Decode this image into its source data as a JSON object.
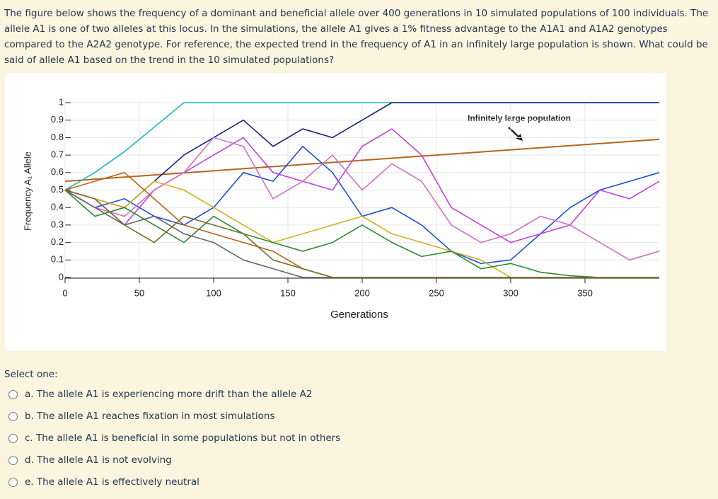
{
  "question": "The figure below shows the frequency of a dominant and beneficial allele over 400 generations in 10 simulated populations of 100 individuals. The allele A1 is one of two alleles at this locus. In the simulations, the allele A1 gives a 1% fitness advantage to the A1A1 and A1A2 genotypes compared to the A2A2 genotype. For reference, the expected trend in the frequency of A1 in an infinitely large population is shown. What could be said of allele A1 based on the trend in the 10 simulated populations?",
  "chart_data": {
    "type": "line",
    "x_label": "Generations",
    "y_label": "Frequency A₁ Allele",
    "annotation": "Infinitely large population",
    "x": [
      0,
      20,
      40,
      60,
      80,
      100,
      120,
      140,
      160,
      180,
      200,
      220,
      240,
      260,
      280,
      300,
      320,
      340,
      360,
      380,
      400
    ],
    "xlim": [
      0,
      400
    ],
    "xticks": [
      0,
      50,
      100,
      150,
      200,
      250,
      300,
      350
    ],
    "ylim": [
      0,
      1
    ],
    "yticks": [
      0,
      0.1,
      0.2,
      0.3,
      0.4,
      0.5,
      0.6,
      0.7,
      0.8,
      0.9,
      1
    ],
    "series": [
      {
        "color": "#1fb5c8",
        "values": [
          0.5,
          0.6,
          0.72,
          0.86,
          1,
          1,
          1,
          1,
          1,
          1,
          1,
          1,
          1,
          1,
          1,
          1,
          1,
          1,
          1,
          1,
          1
        ]
      },
      {
        "color": "#1a237e",
        "values": [
          0.5,
          0.45,
          0.4,
          0.55,
          0.7,
          0.8,
          0.9,
          0.75,
          0.85,
          0.8,
          0.9,
          1,
          1,
          1,
          1,
          1,
          1,
          1,
          1,
          1,
          1
        ]
      },
      {
        "color": "#1e4fd8",
        "values": [
          0.5,
          0.4,
          0.45,
          0.35,
          0.3,
          0.4,
          0.6,
          0.55,
          0.75,
          0.6,
          0.35,
          0.4,
          0.3,
          0.15,
          0.08,
          0.1,
          0.25,
          0.4,
          0.5,
          0.55,
          0.6
        ]
      },
      {
        "color": "#c040e0",
        "values": [
          0.5,
          0.45,
          0.3,
          0.5,
          0.6,
          0.7,
          0.8,
          0.6,
          0.55,
          0.5,
          0.75,
          0.85,
          0.7,
          0.4,
          0.3,
          0.2,
          0.25,
          0.3,
          0.5,
          0.45,
          0.55
        ]
      },
      {
        "color": "#d070c8",
        "values": [
          0.5,
          0.4,
          0.35,
          0.5,
          0.6,
          0.8,
          0.75,
          0.45,
          0.55,
          0.7,
          0.5,
          0.65,
          0.55,
          0.3,
          0.2,
          0.25,
          0.35,
          0.3,
          0.2,
          0.1,
          0.15
        ]
      },
      {
        "color": "#d4b020",
        "values": [
          0.5,
          0.45,
          0.4,
          0.55,
          0.5,
          0.4,
          0.3,
          0.2,
          0.25,
          0.3,
          0.35,
          0.25,
          0.2,
          0.15,
          0.1,
          0,
          0,
          0,
          0,
          0,
          0
        ]
      },
      {
        "color": "#2e8b2e",
        "values": [
          0.5,
          0.35,
          0.4,
          0.3,
          0.2,
          0.35,
          0.25,
          0.2,
          0.15,
          0.2,
          0.3,
          0.2,
          0.12,
          0.15,
          0.05,
          0.08,
          0.03,
          0.01,
          0,
          0,
          0
        ]
      },
      {
        "color": "#666666",
        "values": [
          0.5,
          0.4,
          0.3,
          0.35,
          0.25,
          0.2,
          0.1,
          0.05,
          0,
          0,
          0,
          0,
          0,
          0,
          0,
          0,
          0,
          0,
          0,
          0,
          0
        ]
      },
      {
        "color": "#b5651d",
        "values": [
          0.5,
          0.55,
          0.6,
          0.45,
          0.3,
          0.25,
          0.2,
          0.15,
          0.05,
          0,
          0,
          0,
          0,
          0,
          0,
          0,
          0,
          0,
          0,
          0,
          0
        ]
      },
      {
        "color": "#7a6a2a",
        "values": [
          0.5,
          0.45,
          0.3,
          0.2,
          0.35,
          0.3,
          0.25,
          0.1,
          0.05,
          0,
          0,
          0,
          0,
          0,
          0,
          0,
          0,
          0,
          0,
          0,
          0
        ]
      }
    ],
    "reference": {
      "color": "#b5651d",
      "x": [
        0,
        400
      ],
      "values": [
        0.55,
        0.79
      ]
    }
  },
  "select_label": "Select one:",
  "options": [
    "a. The allele A1 is experiencing more drift than the allele A2",
    "b. The allele A1 reaches fixation in most simulations",
    "c. The allele A1 is beneficial in some populations but not in others",
    "d. The allele A1 is not evolving",
    "e. The allele A1 is effectively neutral"
  ]
}
